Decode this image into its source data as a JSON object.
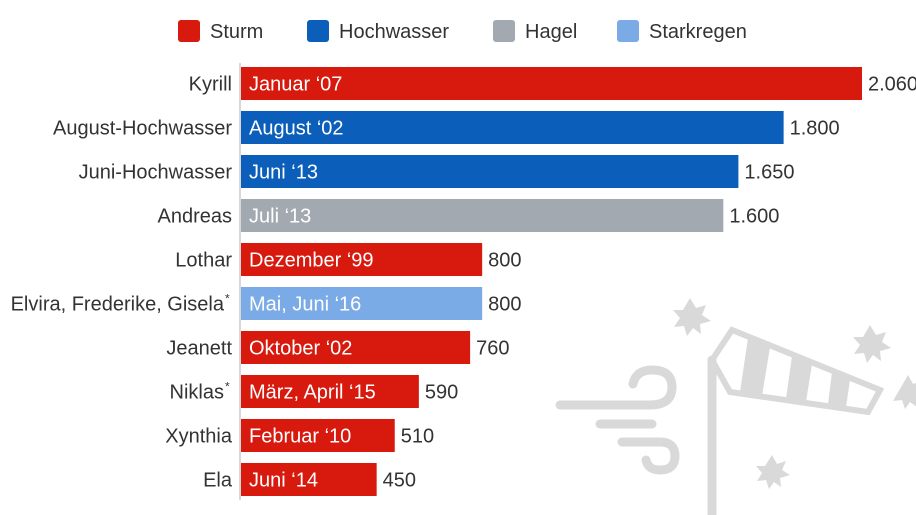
{
  "chart_data": {
    "type": "bar",
    "orientation": "horizontal",
    "legend": [
      {
        "name": "Sturm",
        "color": "#d7190e"
      },
      {
        "name": "Hochwasser",
        "color": "#0b5fba"
      },
      {
        "name": "Hagel",
        "color": "#a3a9b1"
      },
      {
        "name": "Starkregen",
        "color": "#7aabe6"
      }
    ],
    "legend_placement": "top",
    "categories": [
      "Kyrill",
      "August-Hochwasser",
      "Juni-Hochwasser",
      "Andreas",
      "Lothar",
      "Elvira, Frederike, Gisela*",
      "Jeanett",
      "Niklas*",
      "Xynthia",
      "Ela"
    ],
    "dates": [
      "Januar ‘07",
      "August ‘02",
      "Juni ‘13",
      "Juli ‘13",
      "Dezember ‘99",
      "Mai, Juni ‘16",
      "Oktober ‘02",
      "März, April ‘15",
      "Februar ‘10",
      "Juni ‘14"
    ],
    "types": [
      "Sturm",
      "Hochwasser",
      "Hochwasser",
      "Hagel",
      "Sturm",
      "Starkregen",
      "Sturm",
      "Sturm",
      "Sturm",
      "Sturm"
    ],
    "values": [
      2060,
      1800,
      1650,
      1600,
      800,
      800,
      760,
      590,
      510,
      450
    ],
    "value_labels": [
      "2.060",
      "1.800",
      "1.650",
      "1.600",
      "800",
      "800",
      "760",
      "590",
      "510",
      "450"
    ],
    "xlim": [
      0,
      2060
    ],
    "grid": false
  }
}
